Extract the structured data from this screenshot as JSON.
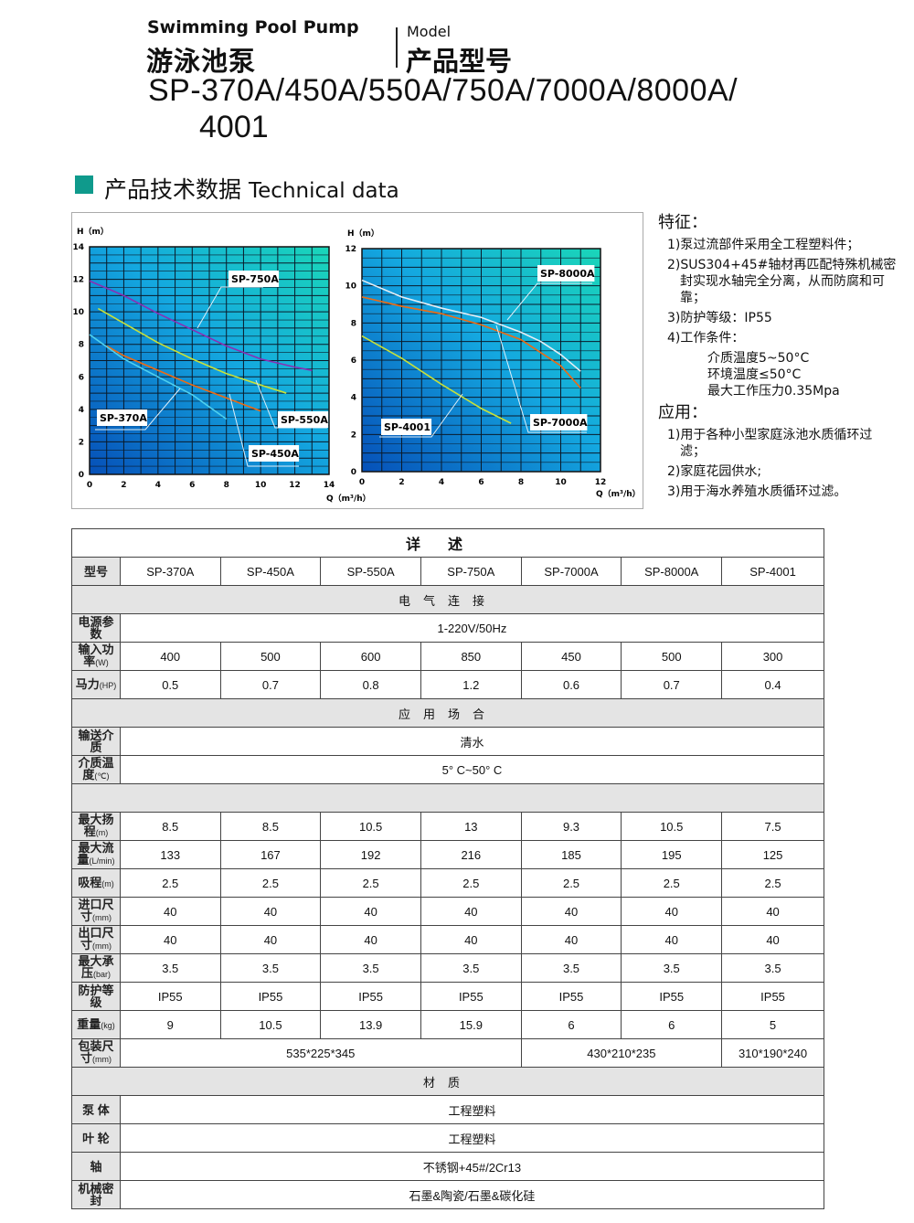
{
  "header": {
    "en_title": "Swimming Pool Pump",
    "cn_title": "游泳池泵",
    "model_en": "Model",
    "model_cn": "产品型号",
    "models_line1": "SP-370A/450A/550A/750A/7000A/8000A/",
    "models_line2": "4001"
  },
  "section": {
    "cn": "产品技术数据",
    "en": "Technical data",
    "accent": "#0f9a8c"
  },
  "chart_data": [
    {
      "type": "line",
      "xlabel": "Q（m³/h）",
      "ylabel": "H（m）",
      "xlim": [
        0,
        14
      ],
      "ylim": [
        0,
        14
      ],
      "xticks": [
        0,
        2,
        4,
        6,
        8,
        10,
        12,
        14
      ],
      "yticks": [
        0,
        2,
        4,
        6,
        8,
        10,
        12,
        14
      ],
      "grid": true,
      "series": [
        {
          "name": "SP-750A",
          "color": "#8a2fb5",
          "points": [
            [
              0,
              11.9
            ],
            [
              2,
              11
            ],
            [
              4,
              9.9
            ],
            [
              6,
              8.9
            ],
            [
              8,
              7.9
            ],
            [
              10,
              7.1
            ],
            [
              12,
              6.6
            ],
            [
              13,
              6.4
            ]
          ]
        },
        {
          "name": "SP-550A",
          "color": "#c8e03a",
          "points": [
            [
              0.5,
              10.2
            ],
            [
              2,
              9.3
            ],
            [
              4,
              8.1
            ],
            [
              6,
              7.1
            ],
            [
              8,
              6.2
            ],
            [
              10,
              5.5
            ],
            [
              11.5,
              5.0
            ]
          ]
        },
        {
          "name": "SP-450A",
          "color": "#f06a10",
          "points": [
            [
              1,
              7.9
            ],
            [
              2,
              7.3
            ],
            [
              4,
              6.4
            ],
            [
              6,
              5.5
            ],
            [
              8,
              4.7
            ],
            [
              10,
              3.9
            ]
          ]
        },
        {
          "name": "SP-370A",
          "color": "#4fd0ee",
          "points": [
            [
              0,
              8.6
            ],
            [
              2,
              7.1
            ],
            [
              4,
              6.0
            ],
            [
              6,
              4.9
            ],
            [
              8,
              3.4
            ]
          ]
        }
      ]
    },
    {
      "type": "line",
      "xlabel": "Q（m³/h）",
      "ylabel": "H（m）",
      "xlim": [
        0,
        12
      ],
      "ylim": [
        0,
        12
      ],
      "xticks": [
        0,
        2,
        4,
        6,
        8,
        10,
        12
      ],
      "yticks": [
        0,
        2,
        4,
        6,
        8,
        10,
        12
      ],
      "grid": true,
      "series": [
        {
          "name": "SP-8000A",
          "color": "#e6eef5",
          "points": [
            [
              0,
              10.3
            ],
            [
              2,
              9.4
            ],
            [
              4,
              8.8
            ],
            [
              6,
              8.3
            ],
            [
              8,
              7.5
            ],
            [
              9,
              7.0
            ],
            [
              10,
              6.3
            ],
            [
              11,
              5.4
            ]
          ]
        },
        {
          "name": "SP-7000A",
          "color": "#f06a10",
          "points": [
            [
              0,
              9.4
            ],
            [
              2,
              8.9
            ],
            [
              4,
              8.5
            ],
            [
              6,
              7.9
            ],
            [
              8,
              7.1
            ],
            [
              10,
              5.7
            ],
            [
              11,
              4.5
            ]
          ]
        },
        {
          "name": "SP-4001",
          "color": "#c8e03a",
          "points": [
            [
              0,
              7.3
            ],
            [
              2,
              6.1
            ],
            [
              4,
              4.7
            ],
            [
              6,
              3.4
            ],
            [
              7.5,
              2.6
            ]
          ]
        }
      ]
    }
  ],
  "features": {
    "title": "特征：",
    "items": [
      "1)泵过流部件采用全工程塑料件；",
      "2)SUS304+45#轴材再匹配特殊机械密",
      "封实现水轴完全分离，从而防腐和可",
      "靠；",
      "3)防护等级：IP55",
      "4)工作条件："
    ],
    "conditions": [
      "介质温度5~50°C",
      "环境温度≤50°C",
      "最大工作压力0.35Mpa"
    ]
  },
  "application": {
    "title": "应用：",
    "items": [
      "1)用于各种小型家庭泳池水质循环过",
      "滤；",
      "2)家庭花园供水;",
      "3)用于海水养殖水质循环过滤。"
    ]
  },
  "table": {
    "title": "详述",
    "model_label": "型号",
    "models": [
      "SP-370A",
      "SP-450A",
      "SP-550A",
      "SP-750A",
      "SP-7000A",
      "SP-8000A",
      "SP-4001"
    ],
    "sec_electric": "电气连接",
    "power_label": "电源参数",
    "power": "1-220V/50Hz",
    "input_label": "输入功率",
    "input_unit": "(W)",
    "input": [
      "400",
      "500",
      "600",
      "850",
      "450",
      "500",
      "300"
    ],
    "hp_label": "马力",
    "hp_unit": "(HP)",
    "hp": [
      "0.5",
      "0.7",
      "0.8",
      "1.2",
      "0.6",
      "0.7",
      "0.4"
    ],
    "sec_application": "应用场合",
    "medium_label": "输送介质",
    "medium": "清水",
    "temp_label": "介质温度",
    "temp_unit": "(℃)",
    "temp": "5° C~50° C",
    "head_label": "最大扬程",
    "head_unit": "(m)",
    "head": [
      "8.5",
      "8.5",
      "10.5",
      "13",
      "9.3",
      "10.5",
      "7.5"
    ],
    "flow_label": "最大流量",
    "flow_unit": "(L/min)",
    "flow": [
      "133",
      "167",
      "192",
      "216",
      "185",
      "195",
      "125"
    ],
    "suction_label": "吸程",
    "suction_unit": "(m)",
    "suction": [
      "2.5",
      "2.5",
      "2.5",
      "2.5",
      "2.5",
      "2.5",
      "2.5"
    ],
    "inlet_label": "进口尺寸",
    "inlet_unit": "(mm)",
    "inlet": [
      "40",
      "40",
      "40",
      "40",
      "40",
      "40",
      "40"
    ],
    "outlet_label": "出口尺寸",
    "outlet_unit": "(mm)",
    "outlet": [
      "40",
      "40",
      "40",
      "40",
      "40",
      "40",
      "40"
    ],
    "pressure_label": "最大承压",
    "pressure_unit": "(bar)",
    "pressure": [
      "3.5",
      "3.5",
      "3.5",
      "3.5",
      "3.5",
      "3.5",
      "3.5"
    ],
    "ip_label": "防护等级",
    "ip": [
      "IP55",
      "IP55",
      "IP55",
      "IP55",
      "IP55",
      "IP55",
      "IP55"
    ],
    "weight_label": "重量",
    "weight_unit": "(kg)",
    "weight": [
      "9",
      "10.5",
      "13.9",
      "15.9",
      "6",
      "6",
      "5"
    ],
    "package_label": "包装尺寸",
    "package_unit": "(mm)",
    "package": [
      "535*225*345",
      "430*210*235",
      "310*190*240"
    ],
    "sec_material": "材质",
    "body_label": "泵 体",
    "body": "工程塑料",
    "impeller_label": "叶 轮",
    "impeller": "工程塑料",
    "shaft_label": "轴",
    "shaft": "不锈钢+45#/2Cr13",
    "seal_label": "机械密封",
    "seal": "石墨&陶瓷/石墨&碳化硅"
  }
}
